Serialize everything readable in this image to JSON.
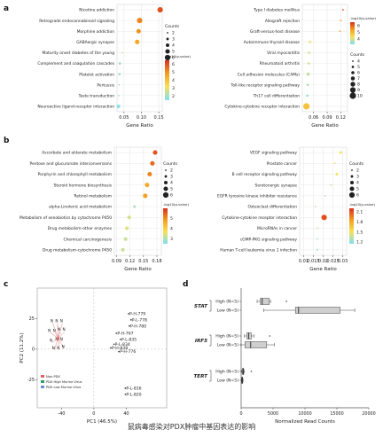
{
  "panel_letters": [
    "a",
    "b",
    "c",
    "d"
  ],
  "caption": "鼠病毒感染对PDX肿瘤中基因表达的影响",
  "colors": {
    "low": "#d83020",
    "mid": "#f2a020",
    "midlight": "#f7e05a",
    "high": "#7fe0f2",
    "grid": "#e8e8e8",
    "axis": "#555555"
  },
  "chart_data": [
    {
      "id": "a-left",
      "type": "scatter",
      "xlabel": "Gene Ratio",
      "xlim": [
        0.03,
        0.16
      ],
      "xticks": [
        0.05,
        0.1,
        0.15
      ],
      "xticklabels": [
        "0.05",
        "0.10",
        "0.15"
      ],
      "categories": [
        "Nicotine addiction",
        "Retrograde endocannabinoid signaling",
        "Morphine addiction",
        "GABAergic synapse",
        "Maturity onset diabetes of the young",
        "Complement and coagulation cascades",
        "Platelet activation",
        "Pertussis",
        "Taste transduction",
        "Neuroactive ligand-receptor interaction"
      ],
      "x": [
        0.154,
        0.095,
        0.092,
        0.088,
        0.045,
        0.038,
        0.037,
        0.036,
        0.035,
        0.034
      ],
      "count": [
        6,
        6,
        5,
        5,
        2,
        3,
        3,
        2,
        2,
        4
      ],
      "color_value": [
        6.0,
        5.2,
        5.0,
        4.6,
        2.6,
        2.0,
        2.0,
        2.0,
        1.8,
        1.6
      ],
      "size_legend_title": "Counts",
      "size_legend": [
        2,
        3,
        4,
        5,
        6
      ],
      "color_legend_title": "-log10(p-value)",
      "color_ticks": [
        6,
        5,
        4,
        3,
        2
      ],
      "clim": [
        1.5,
        6.5
      ]
    },
    {
      "id": "a-right",
      "type": "scatter",
      "xlabel": "Gene Ratio",
      "xlim": [
        0.035,
        0.135
      ],
      "xticks": [
        0.06,
        0.09,
        0.12
      ],
      "xticklabels": [
        "0.06",
        "0.09",
        "0.12"
      ],
      "categories": [
        "Type I diabetes mellitus",
        "Allograft rejection",
        "Graft-versus-host disease",
        "Autoimmune thyroid disease",
        "Viral myocarditis",
        "Rheumatoid arthritis",
        "Cell adhesion molecules (CAMs)",
        "Toll-like receptor signaling pathway",
        "Th17 cell differentiation",
        "Cytokine-cytokine receptor interaction"
      ],
      "x": [
        0.125,
        0.12,
        0.118,
        0.052,
        0.05,
        0.049,
        0.048,
        0.047,
        0.046,
        0.044
      ],
      "count": [
        4,
        4,
        4,
        5,
        5,
        5,
        6,
        5,
        5,
        10
      ],
      "color_value": [
        6.1,
        5.4,
        5.2,
        4.2,
        4.0,
        3.9,
        3.8,
        3.6,
        3.4,
        4.8
      ],
      "size_legend_title": "Counts",
      "size_legend": [
        4,
        5,
        6,
        7,
        8,
        9,
        10
      ],
      "color_legend_title": "-log10(p-value)",
      "color_ticks": [
        6,
        5,
        4
      ],
      "clim": [
        3.2,
        6.5
      ]
    },
    {
      "id": "b-left",
      "type": "scatter",
      "xlabel": "Gene Ratio",
      "xlim": [
        0.085,
        0.19
      ],
      "xticks": [
        0.09,
        0.12,
        0.15,
        0.18
      ],
      "xticklabels": [
        "0.09",
        "0.12",
        "0.15",
        "0.18"
      ],
      "categories": [
        "Ascorbate and aldarate metabolism",
        "Pentose and glucuronate interconversions",
        "Porphyrin and chlorophyll metabolism",
        "Steroid hormone biosynthesis",
        "Retinol metabolism",
        "alpha-Linolenic acid metabolism",
        "Metabolism of xenobiotics by cytochrome P450",
        "Drug metabolism-other enzymes",
        "Chemical carcinogenesis",
        "Drug metabolism-cytochrome P450"
      ],
      "x": [
        0.176,
        0.17,
        0.164,
        0.158,
        0.154,
        0.13,
        0.118,
        0.113,
        0.11,
        0.104
      ],
      "count": [
        5,
        5,
        5,
        5,
        5,
        3,
        4,
        4,
        4,
        4
      ],
      "color_value": [
        5.6,
        5.4,
        5.1,
        4.6,
        4.8,
        2.9,
        3.3,
        3.4,
        3.2,
        3.2
      ],
      "size_legend_title": "Counts",
      "size_legend": [
        2,
        3,
        4,
        5,
        6
      ],
      "color_legend_title": "-log10(p-value)",
      "color_ticks": [
        5,
        4,
        3
      ],
      "clim": [
        2.5,
        6.0
      ]
    },
    {
      "id": "b-right",
      "type": "scatter",
      "xlabel": "Gene Ratio",
      "xlim": [
        0.008,
        0.032
      ],
      "xticks": [
        0.01,
        0.015,
        0.02,
        0.025,
        0.03
      ],
      "xticklabels": [
        "0.01",
        "0.015",
        "0.02",
        "0.025",
        "0.03"
      ],
      "categories": [
        "VEGF signaling pathway",
        "Prostate cancer",
        "B cell receptor signaling pathway",
        "Serotonergic synapse",
        "EGFR tyrosine kinase inhibitor resistance",
        "Osteoclast differentiation",
        "Cytokine-cytokine receptor interaction",
        "MicroRNAs in cancer",
        "cGMP-PKG signaling pathway",
        "Human T-cell leukemia virus 1 infection"
      ],
      "x": [
        0.029,
        0.026,
        0.027,
        0.024,
        0.021,
        0.016,
        0.0205,
        0.017,
        0.017,
        0.017
      ],
      "count": [
        3,
        2,
        3,
        2,
        2,
        2,
        6,
        2,
        2,
        2
      ],
      "color_value": [
        1.5,
        1.45,
        1.5,
        1.35,
        1.3,
        1.35,
        2.1,
        1.3,
        1.25,
        1.2
      ],
      "size_legend_title": "Counts",
      "size_legend": [
        2,
        3,
        4,
        5,
        6
      ],
      "color_legend_title": "-log10(p-value)",
      "color_ticks": [
        2.1,
        1.8,
        1.5,
        1.2
      ],
      "clim": [
        1.15,
        2.2
      ]
    },
    {
      "id": "c",
      "type": "scatter",
      "xlabel": "PC1 (46.5%)",
      "ylabel": "PC2 (11.2%)",
      "xlim": [
        -70,
        90
      ],
      "ylim": [
        -48,
        50
      ],
      "xticks": [
        -40,
        0,
        40
      ],
      "yticks": [
        -25,
        0,
        25
      ],
      "legend": [
        "Non-PDX",
        "PDX High Murine Virus",
        "PDX Low Murine Virus"
      ],
      "legend_colors": [
        "#e06060",
        "#2a9d6a",
        "#6a8fd0"
      ],
      "labels": [
        {
          "text": "P-H-779",
          "x": 44,
          "y": 29
        },
        {
          "text": "P-L-778",
          "x": 47,
          "y": 24
        },
        {
          "text": "P-H-780",
          "x": 45,
          "y": 19
        },
        {
          "text": "P-H-767",
          "x": 29,
          "y": 13
        },
        {
          "text": "P-L-835",
          "x": 34,
          "y": 8
        },
        {
          "text": "P-L-834",
          "x": 26,
          "y": 4
        },
        {
          "text": "P-H-838",
          "x": 22,
          "y": 1
        },
        {
          "text": "P-H-776",
          "x": 32,
          "y": -2
        },
        {
          "text": "P-L-816",
          "x": 40,
          "y": -32
        },
        {
          "text": "P-L-820",
          "x": 40,
          "y": -37
        }
      ],
      "n_labels": [
        "N",
        "N",
        "N",
        "N",
        "N",
        "N",
        "N",
        "N",
        "N",
        "N",
        "N",
        "N",
        "N"
      ]
    },
    {
      "id": "d",
      "type": "box",
      "xlabel": "Normalized Read Counts",
      "xlim": [
        0,
        20000
      ],
      "xticks": [
        0,
        5000,
        10000,
        15000,
        20000
      ],
      "xticklabels": [
        "0",
        "5000",
        "10000",
        "15000",
        "20000"
      ],
      "genes": [
        "STAT",
        "IRF5",
        "TERT"
      ],
      "groups": [
        {
          "gene": "STAT",
          "label": "High (N=5)",
          "min": 2500,
          "q1": 3000,
          "median": 3300,
          "q3": 4400,
          "max": 4600,
          "outliers": [
            7100
          ]
        },
        {
          "gene": "STAT",
          "label": "Low (N=5)",
          "min": 3500,
          "q1": 8500,
          "median": 9000,
          "q3": 15500,
          "max": 17800,
          "outliers": []
        },
        {
          "gene": "IRF5",
          "label": "High (N=5)",
          "min": 500,
          "q1": 900,
          "median": 1200,
          "q3": 1600,
          "max": 2000,
          "outliers": [
            4500
          ]
        },
        {
          "gene": "IRF5",
          "label": "Low (N=5)",
          "min": 0,
          "q1": 600,
          "median": 1500,
          "q3": 4000,
          "max": 5200,
          "outliers": []
        },
        {
          "gene": "TERT",
          "label": "High (N=5)",
          "min": 100,
          "q1": 200,
          "median": 300,
          "q3": 400,
          "max": 500,
          "outliers": [
            1600
          ]
        },
        {
          "gene": "TERT",
          "label": "Low (N=5)",
          "min": 50,
          "q1": 100,
          "median": 150,
          "q3": 250,
          "max": 300,
          "outliers": []
        }
      ]
    }
  ]
}
